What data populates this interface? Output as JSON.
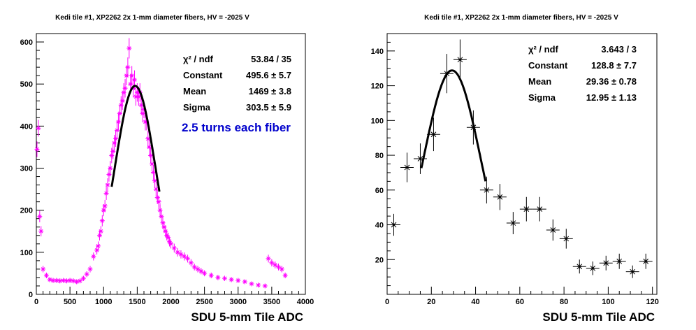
{
  "chart_data": [
    {
      "type": "scatter",
      "title": "Kedi tile #1, XP2262 2x 1-mm diameter fibers, HV = -2025 V",
      "xlabel": "SDU 5-mm Tile ADC",
      "ylabel": "",
      "xlim": [
        0,
        4000
      ],
      "ylim": [
        0,
        620
      ],
      "xticks": [
        "0",
        "500",
        "1000",
        "1500",
        "2000",
        "2500",
        "3000",
        "3500",
        "4000"
      ],
      "yticks": [
        "0",
        "100",
        "200",
        "300",
        "400",
        "500",
        "600"
      ],
      "grid": false,
      "marker_color": "#ff00ff",
      "fit_color": "#000000",
      "annotation": "2.5 turns each fiber",
      "annotation_color": "#0000cc",
      "stats": [
        {
          "label": "χ² / ndf",
          "value": "53.84 / 35"
        },
        {
          "label": "Constant",
          "value": "495.6 ± 5.7"
        },
        {
          "label": "Mean",
          "value": "1469 ± 3.8"
        },
        {
          "label": "Sigma",
          "value": "303.5 ± 5.9"
        }
      ],
      "series": [
        {
          "x": [
            10,
            30,
            50,
            70,
            100,
            150,
            200,
            250,
            300,
            350,
            400,
            450,
            500,
            550,
            600,
            650,
            700,
            750,
            800,
            850,
            900,
            920,
            940,
            960,
            980,
            1000,
            1020,
            1040,
            1060,
            1080,
            1100,
            1120,
            1140,
            1160,
            1180,
            1200,
            1220,
            1240,
            1260,
            1280,
            1300,
            1320,
            1340,
            1360,
            1380,
            1400,
            1420,
            1440,
            1460,
            1480,
            1500,
            1520,
            1540,
            1560,
            1580,
            1600,
            1620,
            1640,
            1660,
            1680,
            1700,
            1720,
            1740,
            1760,
            1780,
            1800,
            1820,
            1840,
            1860,
            1880,
            1900,
            1920,
            1940,
            1960,
            1980,
            2000,
            2050,
            2100,
            2150,
            2200,
            2250,
            2300,
            2350,
            2400,
            2450,
            2500,
            2600,
            2700,
            2800,
            2900,
            3000,
            3100,
            3200,
            3300,
            3400,
            3450,
            3500,
            3550,
            3600,
            3650,
            3700
          ],
          "y": [
            345,
            395,
            185,
            150,
            60,
            45,
            35,
            33,
            33,
            32,
            33,
            32,
            33,
            32,
            30,
            32,
            38,
            48,
            60,
            90,
            105,
            115,
            140,
            150,
            175,
            200,
            210,
            240,
            260,
            285,
            300,
            330,
            340,
            360,
            370,
            390,
            410,
            430,
            450,
            460,
            480,
            490,
            520,
            540,
            585,
            500,
            520,
            490,
            510,
            470,
            480,
            470,
            480,
            450,
            430,
            440,
            410,
            410,
            370,
            350,
            330,
            310,
            290,
            270,
            250,
            230,
            220,
            200,
            185,
            170,
            160,
            150,
            140,
            135,
            125,
            120,
            110,
            100,
            95,
            90,
            85,
            75,
            65,
            60,
            55,
            50,
            45,
            40,
            38,
            35,
            33,
            30,
            25,
            22,
            20,
            85,
            75,
            70,
            65,
            60,
            45
          ]
        }
      ],
      "fit": {
        "function": "gaus",
        "constant": 495.6,
        "mean": 1469,
        "sigma": 303.5,
        "x_range": [
          1120,
          1830
        ]
      }
    },
    {
      "type": "scatter",
      "title": "Kedi tile #1, XP2262 2x 1-mm diameter fibers, HV = -2025 V",
      "xlabel": "SDU 5-mm Tile ADC",
      "ylabel": "",
      "xlim": [
        0,
        122
      ],
      "ylim": [
        0,
        150
      ],
      "xticks": [
        "0",
        "20",
        "40",
        "60",
        "80",
        "100",
        "120"
      ],
      "yticks": [
        "20",
        "40",
        "60",
        "80",
        "100",
        "120",
        "140"
      ],
      "grid": false,
      "marker_color": "#000000",
      "fit_color": "#000000",
      "stats": [
        {
          "label": "χ² / ndf",
          "value": "3.643 / 3"
        },
        {
          "label": "Constant",
          "value": "128.8 ± 7.7"
        },
        {
          "label": "Mean",
          "value": "29.36 ± 0.78"
        },
        {
          "label": "Sigma",
          "value": "12.95 ± 1.13"
        }
      ],
      "series": [
        {
          "x": [
            3,
            9,
            15,
            21,
            27,
            33,
            39,
            45,
            51,
            57,
            63,
            69,
            75,
            81,
            87,
            93,
            99,
            105,
            111,
            117
          ],
          "y": [
            40,
            73,
            78,
            92,
            127,
            135,
            96,
            60,
            56,
            41,
            49,
            49,
            37,
            32,
            16,
            15,
            18,
            19,
            13,
            19
          ],
          "xerr": [
            3,
            3,
            3,
            3,
            3,
            3,
            3,
            3,
            3,
            3,
            3,
            3,
            3,
            3,
            3,
            3,
            3,
            3,
            3,
            3
          ],
          "yerr": [
            6.3,
            8.5,
            8.8,
            9.6,
            11.3,
            11.6,
            9.8,
            7.7,
            7.5,
            6.4,
            7.0,
            7.0,
            6.1,
            5.7,
            4.0,
            3.9,
            4.2,
            4.4,
            3.6,
            4.4
          ]
        }
      ],
      "fit": {
        "function": "gaus",
        "constant": 128.8,
        "mean": 29.36,
        "sigma": 12.95,
        "x_range": [
          15.5,
          44.5
        ]
      }
    }
  ]
}
